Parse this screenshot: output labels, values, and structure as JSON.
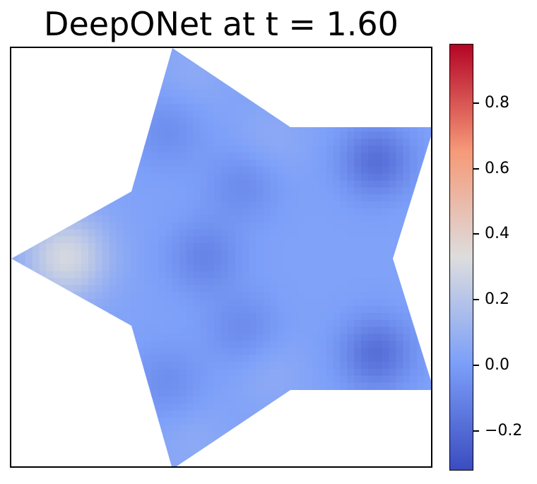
{
  "chart_data": {
    "type": "heatmap",
    "title": "DeepONet at t = 1.60",
    "xlabel": "",
    "ylabel": "",
    "domain_shape": "five-pointed star",
    "colormap": "coolwarm",
    "colorbar": {
      "vmin": -0.32,
      "vmax": 0.98,
      "ticks": [
        -0.2,
        0.0,
        0.2,
        0.4,
        0.6,
        0.8
      ],
      "tick_labels": [
        "−0.2",
        "0.0",
        "0.2",
        "0.4",
        "0.6",
        "0.8"
      ]
    },
    "field": {
      "background_value": 0.02,
      "features": [
        {
          "kind": "high",
          "x": 0.13,
          "y": 0.5,
          "value": 0.3
        },
        {
          "kind": "low",
          "x": 0.46,
          "y": 0.5,
          "value": -0.1
        },
        {
          "kind": "low",
          "x": 0.87,
          "y": 0.27,
          "value": -0.18
        },
        {
          "kind": "low",
          "x": 0.87,
          "y": 0.73,
          "value": -0.18
        },
        {
          "kind": "low",
          "x": 0.55,
          "y": 0.33,
          "value": -0.07
        },
        {
          "kind": "low",
          "x": 0.55,
          "y": 0.67,
          "value": -0.07
        },
        {
          "kind": "low",
          "x": 0.37,
          "y": 0.2,
          "value": -0.06
        },
        {
          "kind": "low",
          "x": 0.37,
          "y": 0.8,
          "value": -0.06
        },
        {
          "kind": "high",
          "x": 0.43,
          "y": 0.06,
          "value": 0.06
        },
        {
          "kind": "high",
          "x": 0.43,
          "y": 0.94,
          "value": 0.06
        },
        {
          "kind": "high",
          "x": 0.62,
          "y": 0.22,
          "value": 0.06
        },
        {
          "kind": "high",
          "x": 0.62,
          "y": 0.78,
          "value": 0.06
        }
      ]
    }
  }
}
